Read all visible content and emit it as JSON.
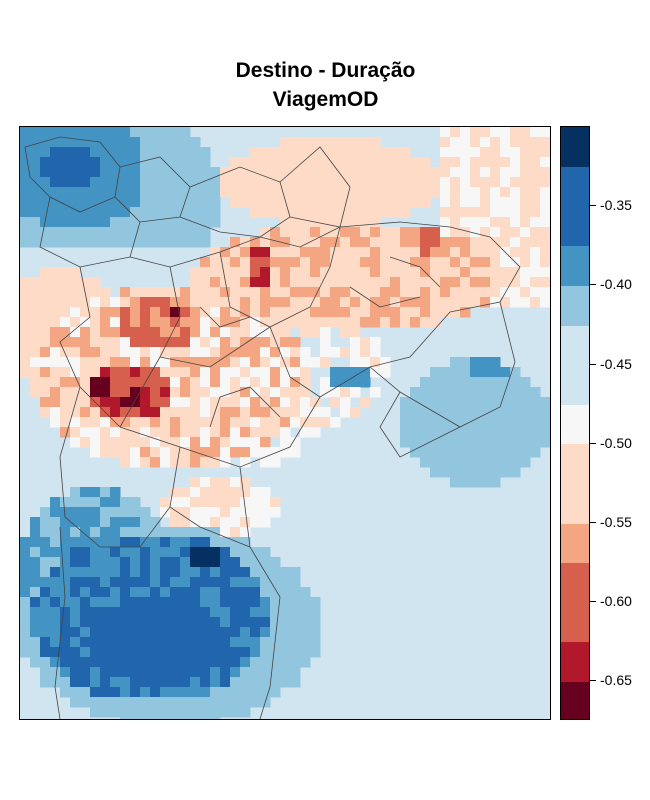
{
  "title": {
    "line1": "Destino - Duração",
    "line2": "ViagemOD"
  },
  "legend": {
    "bands": [
      {
        "from": -0.675,
        "to": -0.65,
        "color": "#67001f"
      },
      {
        "from": -0.65,
        "to": -0.625,
        "color": "#b2182b"
      },
      {
        "from": -0.625,
        "to": -0.575,
        "color": "#d6604d"
      },
      {
        "from": -0.575,
        "to": -0.55,
        "color": "#f4a582"
      },
      {
        "from": -0.55,
        "to": -0.5,
        "color": "#fddbc7"
      },
      {
        "from": -0.5,
        "to": -0.475,
        "color": "#f7f7f7"
      },
      {
        "from": -0.475,
        "to": -0.425,
        "color": "#d1e5f0"
      },
      {
        "from": -0.425,
        "to": -0.4,
        "color": "#92c5de"
      },
      {
        "from": -0.4,
        "to": -0.375,
        "color": "#4393c3"
      },
      {
        "from": -0.375,
        "to": -0.325,
        "color": "#2166ac"
      },
      {
        "from": -0.325,
        "to": -0.3,
        "color": "#053061"
      }
    ],
    "ticks": [
      {
        "value": -0.35,
        "label": "-0.35"
      },
      {
        "value": -0.4,
        "label": "-0.40"
      },
      {
        "value": -0.45,
        "label": "-0.45"
      },
      {
        "value": -0.5,
        "label": "-0.50"
      },
      {
        "value": -0.55,
        "label": "-0.55"
      },
      {
        "value": -0.6,
        "label": "-0.60"
      },
      {
        "value": -0.65,
        "label": "-0.65"
      }
    ],
    "range": [
      -0.675,
      -0.3
    ]
  },
  "map": {
    "background_color": "#d1e5f0",
    "boundary_color": "#444444"
  }
}
